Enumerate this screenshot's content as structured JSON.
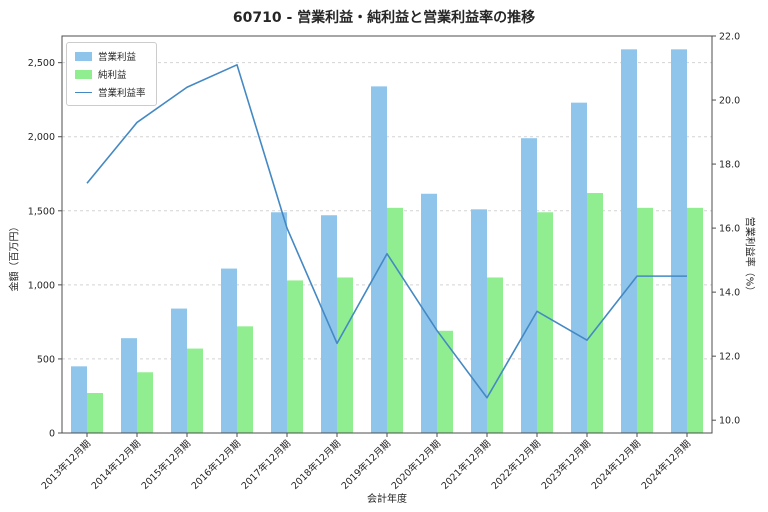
{
  "page": {
    "background": "#ffffff"
  },
  "chart_data": {
    "type": "bar",
    "subtype": "grouped bars with overlaid line on secondary axis",
    "title": "60710 - 営業利益・純利益と営業利益率の推移",
    "xlabel": "会計年度",
    "ylabel_left": "金額（百万円）",
    "ylabel_right": "営業利益率（%）",
    "legend_position": "upper left",
    "grid": "horizontal dashed",
    "categories": [
      "2013年12月期",
      "2014年12月期",
      "2015年12月期",
      "2016年12月期",
      "2017年12月期",
      "2018年12月期",
      "2019年12月期",
      "2020年12月期",
      "2021年12月期",
      "2022年12月期",
      "2023年12月期",
      "2024年12月期",
      "2024年12月期"
    ],
    "series": [
      {
        "name": "営業利益",
        "kind": "bar",
        "axis": "left",
        "color": "#8FC5EB",
        "values": [
          450,
          640,
          840,
          1110,
          1490,
          1470,
          2340,
          1615,
          1510,
          1990,
          2230,
          2590,
          2590
        ]
      },
      {
        "name": "純利益",
        "kind": "bar",
        "axis": "left",
        "color": "#90EE90",
        "values": [
          270,
          410,
          570,
          720,
          1030,
          1050,
          1520,
          690,
          1050,
          1490,
          1620,
          1520,
          1520
        ]
      },
      {
        "name": "営業利益率",
        "kind": "line",
        "axis": "right",
        "color": "#4489C4",
        "values": [
          17.4,
          19.3,
          20.4,
          21.1,
          16.0,
          12.4,
          15.2,
          12.8,
          10.7,
          13.4,
          12.5,
          14.5,
          14.5
        ]
      }
    ],
    "left_axis": {
      "range": [
        0,
        2680
      ],
      "tick_values": [
        0,
        500,
        1000,
        1500,
        2000,
        2500
      ],
      "tick_labels": [
        "0",
        "500",
        "1,000",
        "1,500",
        "2,000",
        "2,500"
      ]
    },
    "right_axis": {
      "range": [
        9.6,
        22.0
      ],
      "tick_values": [
        10,
        12,
        14,
        16,
        18,
        20,
        22
      ],
      "tick_labels": [
        "10.0",
        "12.0",
        "14.0",
        "16.0",
        "18.0",
        "20.0",
        "22.0"
      ]
    }
  }
}
